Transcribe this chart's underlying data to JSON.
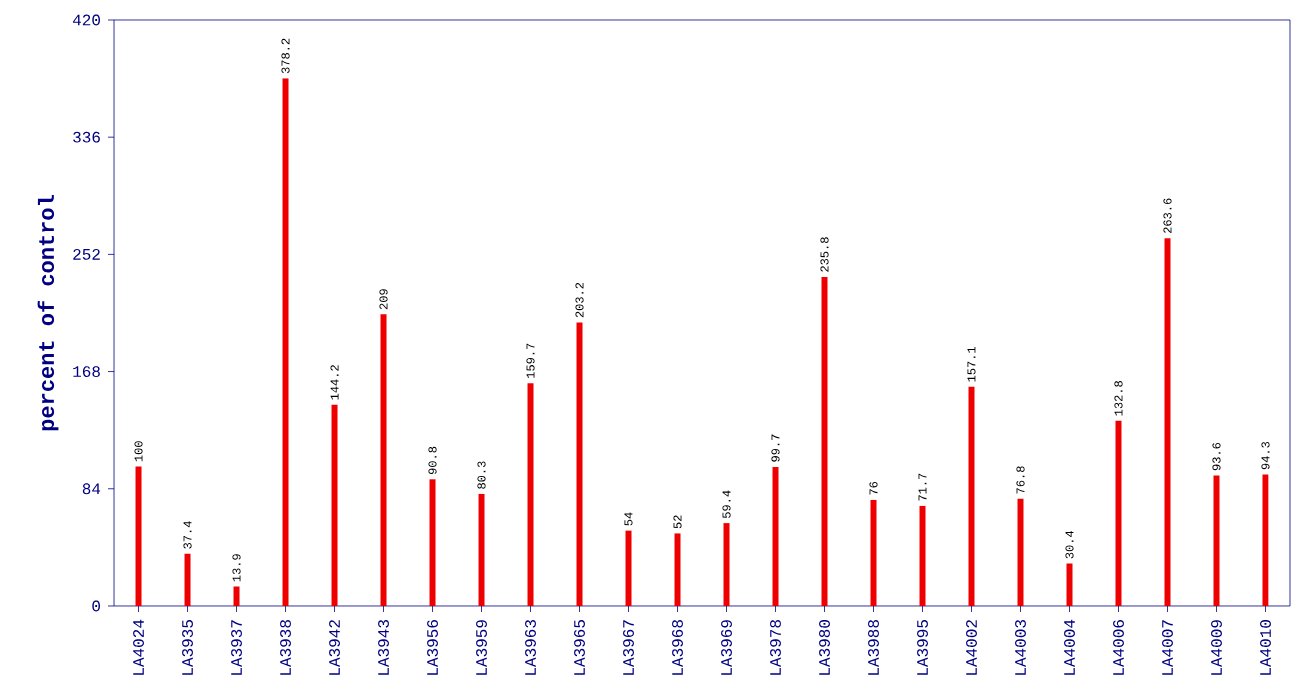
{
  "chart_data": {
    "type": "bar",
    "ylabel": "percent of control",
    "categories": [
      "LA4024",
      "LA3935",
      "LA3937",
      "LA3938",
      "LA3942",
      "LA3943",
      "LA3956",
      "LA3959",
      "LA3963",
      "LA3965",
      "LA3967",
      "LA3968",
      "LA3969",
      "LA3978",
      "LA3980",
      "LA3988",
      "LA3995",
      "LA4002",
      "LA4003",
      "LA4004",
      "LA4006",
      "LA4007",
      "LA4009",
      "LA4010"
    ],
    "values": [
      100,
      37.4,
      13.9,
      378.2,
      144.2,
      209,
      90.8,
      80.3,
      159.7,
      203.2,
      54,
      52,
      59.4,
      99.7,
      235.8,
      76,
      71.7,
      157.1,
      76.8,
      30.4,
      132.8,
      263.6,
      93.6,
      94.3
    ],
    "color": "#ee0000",
    "ylim": [
      0,
      420
    ],
    "yticks": [
      0,
      84,
      168,
      252,
      336,
      420
    ],
    "data_labels": true
  }
}
